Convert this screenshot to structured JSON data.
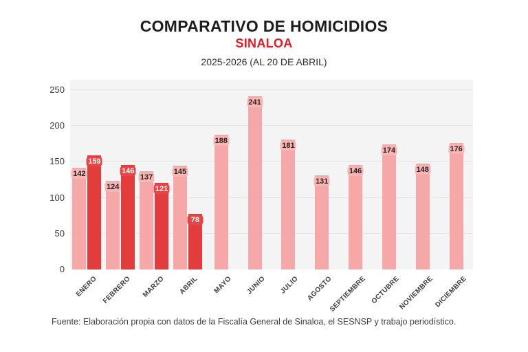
{
  "page": {
    "title": "COMPARATIVO DE HOMICIDIOS",
    "region": "SINALOA",
    "subtitle": "2025-2026 (AL 20 DE ABRIL)",
    "source": "Fuente: Elaboración propia con datos de la Fiscalía General de Sinaloa, el SESNSP y trabajo periodístico.",
    "accent_red": "#e11b23"
  },
  "chart_data": {
    "type": "bar",
    "title": "COMPARATIVO DE HOMICIDIOS",
    "subtitle": "SINALOA 2025-2026 (AL 20 DE ABRIL)",
    "categories": [
      "ENERO",
      "FEBRERO",
      "MARZO",
      "ABRIL",
      "MAYO",
      "JUNIO",
      "JULIO",
      "AGOSTO",
      "SEPTIEMBRE",
      "OCTUBRE",
      "NOVIEMBRE",
      "DICIEMBRE"
    ],
    "series": [
      {
        "name": "2025",
        "color": "#f6a7a7",
        "label_bg": "#f9b4b4",
        "label_text_color": "#241f1f",
        "values": [
          142,
          124,
          137,
          145,
          188,
          241,
          181,
          131,
          146,
          174,
          148,
          176
        ]
      },
      {
        "name": "2026",
        "color": "#e23c3c",
        "label_bg": "#e74646",
        "label_text_color": "#ffffff",
        "values": [
          159,
          146,
          121,
          78,
          null,
          null,
          null,
          null,
          null,
          null,
          null,
          null
        ]
      }
    ],
    "ylabel": "",
    "xlabel": "",
    "ylim": [
      0,
      250
    ],
    "yticks": [
      0,
      50,
      100,
      150,
      200,
      250
    ],
    "grid": "horizontal",
    "legend": "none",
    "plot_bg": "#f5f4f4",
    "grid_color": "#e9e3e3"
  }
}
